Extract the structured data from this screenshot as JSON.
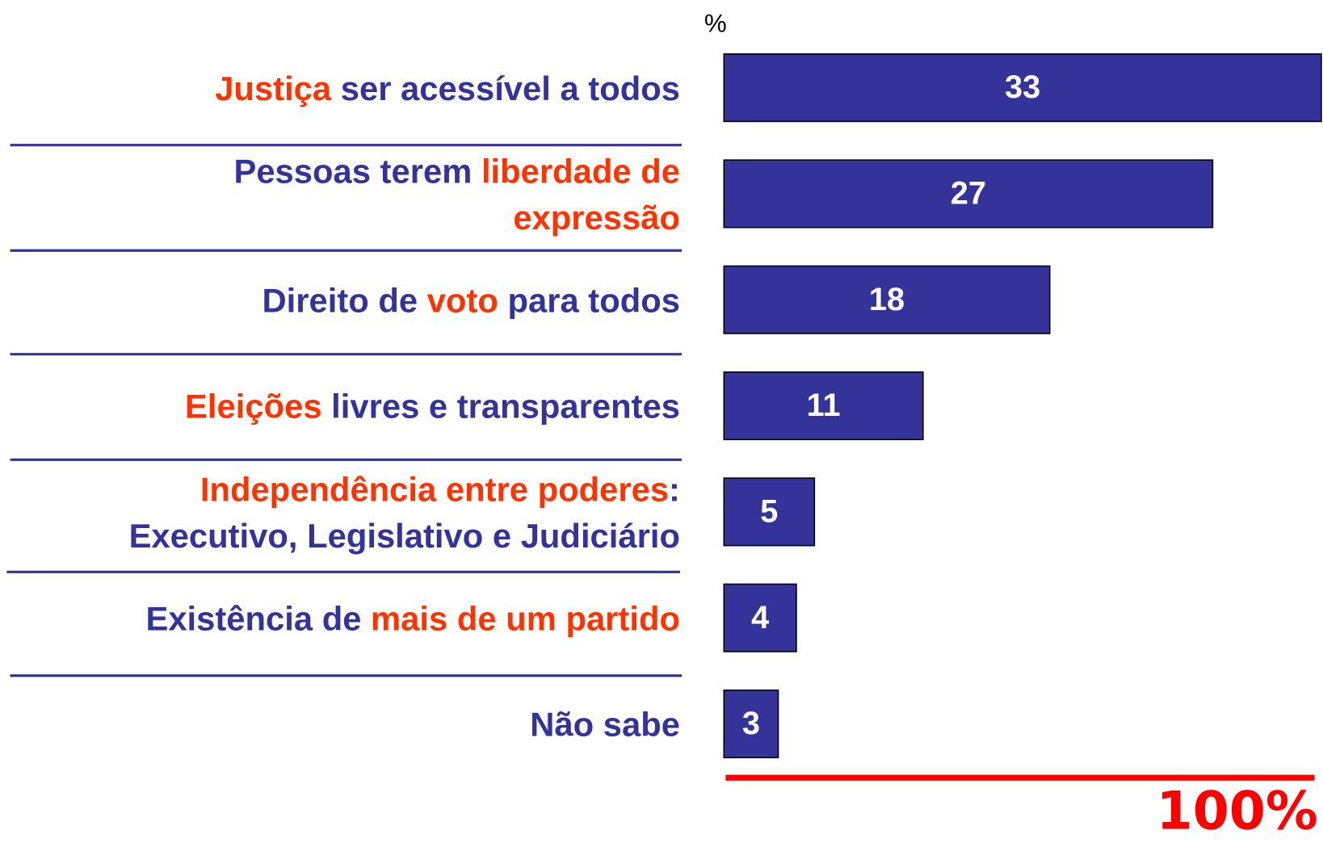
{
  "chart_data": {
    "type": "bar",
    "orientation": "horizontal",
    "unit_label": "%",
    "total_label": "100%",
    "color": "#333399",
    "xlim": [
      0,
      33
    ],
    "categories": [
      [
        [
          {
            "text": "Justiça",
            "color": "#ff3300"
          },
          {
            "text": " ser acessível a todos",
            "color": "#333399"
          }
        ]
      ],
      [
        [
          {
            "text": "Pessoas terem ",
            "color": "#333399"
          },
          {
            "text": "liberdade de",
            "color": "#ff3300"
          }
        ],
        [
          {
            "text": "expressão",
            "color": "#ff3300"
          }
        ]
      ],
      [
        [
          {
            "text": "Direito de ",
            "color": "#333399"
          },
          {
            "text": "voto",
            "color": "#ff3300"
          },
          {
            "text": " para todos",
            "color": "#333399"
          }
        ]
      ],
      [
        [
          {
            "text": "Eleições",
            "color": "#ff3300"
          },
          {
            "text": " livres e transparentes",
            "color": "#333399"
          }
        ]
      ],
      [
        [
          {
            "text": "Independência entre poderes",
            "color": "#ff3300"
          },
          {
            "text": ":",
            "color": "#333399"
          }
        ],
        [
          {
            "text": "Executivo, Legislativo e Judiciário",
            "color": "#333399"
          }
        ]
      ],
      [
        [
          {
            "text": "Existência de ",
            "color": "#333399"
          },
          {
            "text": "mais de um partido",
            "color": "#ff3300"
          }
        ]
      ],
      [
        [
          {
            "text": "Não sabe",
            "color": "#333399"
          }
        ]
      ]
    ],
    "values": [
      33,
      27,
      18,
      11,
      5,
      4,
      3
    ]
  }
}
